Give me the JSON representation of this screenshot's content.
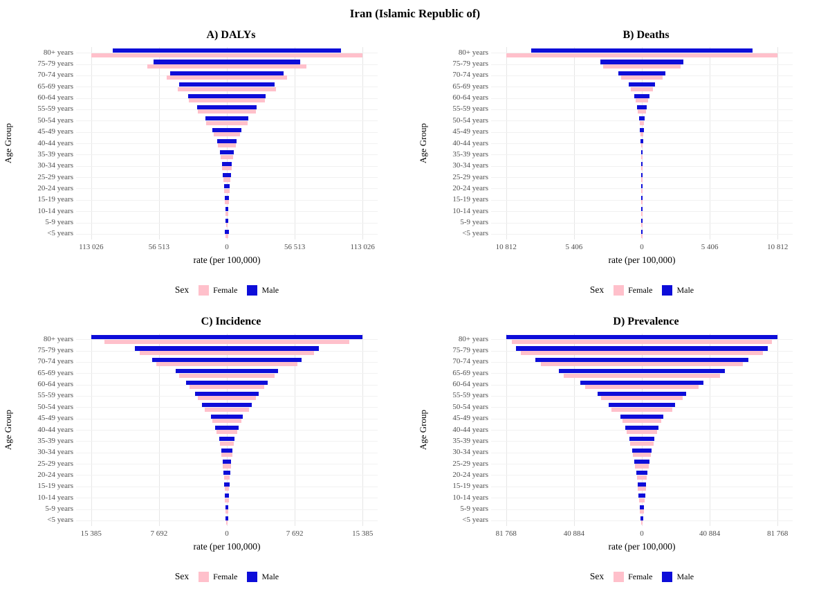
{
  "page": {
    "title": "Iran (Islamic Republic of)"
  },
  "colors": {
    "female": "#FFC0CB",
    "male": "#0D0DD9",
    "axis_text": "#4d4d4d",
    "grid": "#e6e6e6"
  },
  "legend": {
    "label": "Sex",
    "female": "Female",
    "male": "Male"
  },
  "chart_data": [
    {
      "id": "dalys",
      "type": "bar",
      "subtype": "mirrored-population-pyramid",
      "title": "A) DALYs",
      "xlabel": "rate (per 100,000)",
      "ylabel": "Age Group",
      "xmax": 113026,
      "tick_values": [
        -113026,
        -56513,
        0,
        56513,
        113026
      ],
      "tick_labels": [
        "113 026",
        "56 513",
        "0",
        "56 513",
        "113 026"
      ],
      "categories": [
        "80+ years",
        "75-79 years",
        "70-74 years",
        "65-69 years",
        "60-64 years",
        "55-59 years",
        "50-54 years",
        "45-49 years",
        "40-44 years",
        "35-39 years",
        "30-34 years",
        "25-29 years",
        "20-24 years",
        "15-19 years",
        "10-14 years",
        "5-9 years",
        "<5 years"
      ],
      "series": [
        {
          "name": "Female",
          "values": [
            113026,
            66000,
            50000,
            41000,
            31500,
            24000,
            17000,
            11000,
            7600,
            5300,
            3900,
            3000,
            2300,
            1700,
            1100,
            800,
            1300
          ]
        },
        {
          "name": "Male",
          "values": [
            95000,
            61000,
            47500,
            40000,
            32500,
            25000,
            18000,
            12000,
            8200,
            5800,
            4200,
            3300,
            2500,
            1900,
            1300,
            900,
            1500
          ]
        }
      ],
      "legend_position": "bottom",
      "grid": true
    },
    {
      "id": "deaths",
      "type": "bar",
      "subtype": "mirrored-population-pyramid",
      "title": "B) Deaths",
      "xlabel": "rate (per 100,000)",
      "ylabel": "Age Group",
      "xmax": 10812,
      "tick_values": [
        -10812,
        -5406,
        0,
        5406,
        10812
      ],
      "tick_labels": [
        "10 812",
        "5 406",
        "0",
        "5 406",
        "10 812"
      ],
      "categories": [
        "80+ years",
        "75-79 years",
        "70-74 years",
        "65-69 years",
        "60-64 years",
        "55-59 years",
        "50-54 years",
        "45-49 years",
        "40-44 years",
        "35-39 years",
        "30-34 years",
        "25-29 years",
        "20-24 years",
        "15-19 years",
        "10-14 years",
        "5-9 years",
        "<5 years"
      ],
      "series": [
        {
          "name": "Female",
          "values": [
            10812,
            3100,
            1650,
            900,
            520,
            310,
            190,
            115,
            70,
            45,
            28,
            20,
            14,
            10,
            7,
            5,
            8
          ]
        },
        {
          "name": "Male",
          "values": [
            8800,
            3300,
            1850,
            1050,
            620,
            380,
            235,
            145,
            90,
            58,
            37,
            26,
            18,
            13,
            9,
            6,
            11
          ]
        }
      ],
      "legend_position": "bottom",
      "grid": true
    },
    {
      "id": "incidence",
      "type": "bar",
      "subtype": "mirrored-population-pyramid",
      "title": "C) Incidence",
      "xlabel": "rate (per 100,000)",
      "ylabel": "Age Group",
      "xmax": 15385,
      "tick_values": [
        -15385,
        -7692,
        0,
        7692,
        15385
      ],
      "tick_labels": [
        "15 385",
        "7 692",
        "0",
        "7 692",
        "15 385"
      ],
      "categories": [
        "80+ years",
        "75-79 years",
        "70-74 years",
        "65-69 years",
        "60-64 years",
        "55-59 years",
        "50-54 years",
        "45-49 years",
        "40-44 years",
        "35-39 years",
        "30-34 years",
        "25-29 years",
        "20-24 years",
        "15-19 years",
        "10-14 years",
        "5-9 years",
        "<5 years"
      ],
      "series": [
        {
          "name": "Female",
          "values": [
            13900,
            9900,
            8000,
            5400,
            4200,
            3300,
            2500,
            1650,
            1200,
            820,
            590,
            450,
            340,
            260,
            200,
            140,
            100
          ]
        },
        {
          "name": "Male",
          "values": [
            15385,
            10400,
            8500,
            5800,
            4600,
            3600,
            2800,
            1800,
            1300,
            900,
            650,
            500,
            380,
            290,
            220,
            160,
            120
          ]
        }
      ],
      "legend_position": "bottom",
      "grid": true
    },
    {
      "id": "prevalence",
      "type": "bar",
      "subtype": "mirrored-population-pyramid",
      "title": "D) Prevalence",
      "xlabel": "rate (per 100,000)",
      "ylabel": "Age Group",
      "xmax": 81768,
      "tick_values": [
        -81768,
        -40884,
        0,
        40884,
        81768
      ],
      "tick_labels": [
        "81 768",
        "40 884",
        "0",
        "40 884",
        "81 768"
      ],
      "categories": [
        "80+ years",
        "75-79 years",
        "70-74 years",
        "65-69 years",
        "60-64 years",
        "55-59 years",
        "50-54 years",
        "45-49 years",
        "40-44 years",
        "35-39 years",
        "30-34 years",
        "25-29 years",
        "20-24 years",
        "15-19 years",
        "10-14 years",
        "5-9 years",
        "<5 years"
      ],
      "series": [
        {
          "name": "Female",
          "values": [
            78500,
            73000,
            61000,
            47000,
            34000,
            24500,
            18500,
            11800,
            9100,
            6900,
            5300,
            4100,
            3100,
            2400,
            1800,
            1100,
            600
          ]
        },
        {
          "name": "Male",
          "values": [
            81768,
            76000,
            64000,
            50000,
            37000,
            26500,
            20000,
            12800,
            9800,
            7500,
            5800,
            4500,
            3400,
            2600,
            2000,
            1200,
            700
          ]
        }
      ],
      "legend_position": "bottom",
      "grid": true
    }
  ]
}
